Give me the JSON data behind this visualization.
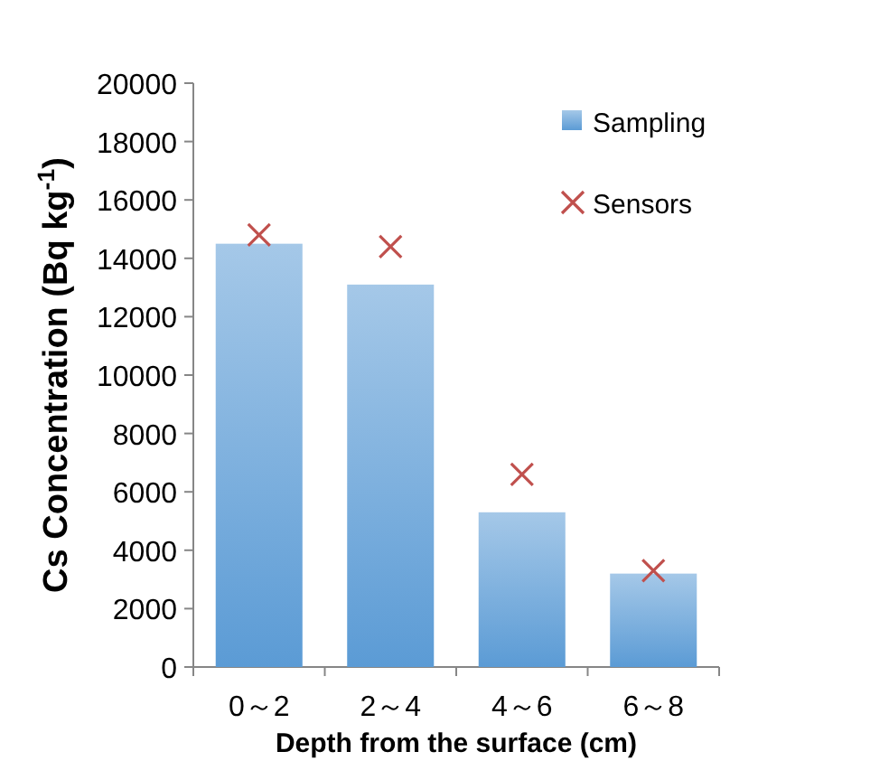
{
  "chart_data": {
    "type": "bar",
    "xlabel": "Depth from the surface (cm)",
    "ylabel": "Cs Concentration (Bq kg$^{-1}$)",
    "categories": [
      "0～2",
      "2～4",
      "4～6",
      "6～8"
    ],
    "series": [
      {
        "name": "Sampling",
        "color": "#5b9bd5",
        "values": [
          14500,
          13100,
          5300,
          3200
        ]
      },
      {
        "name": "Sensors",
        "type": "scatter",
        "color": "#c0504d",
        "marker": "cross",
        "values": [
          14800,
          14400,
          6600,
          3300
        ]
      }
    ],
    "ylim": [
      0,
      20000
    ],
    "yticks": [
      0,
      2000,
      4000,
      6000,
      8000,
      10000,
      12000,
      14000,
      16000,
      18000,
      20000
    ],
    "legend": "top right",
    "grid": false
  }
}
